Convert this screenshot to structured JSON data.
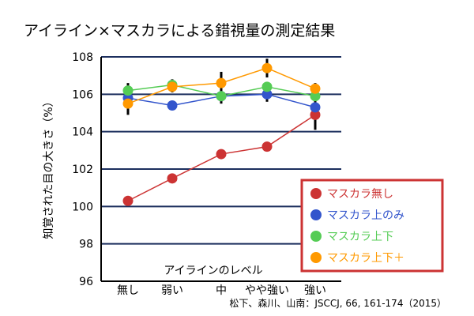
{
  "chart_data": {
    "type": "line",
    "title": "アイライン×マスカラによる錯視量の測定結果",
    "xlabel": "アイラインのレベル",
    "ylabel": "知覚された目の大きさ（%）",
    "categories": [
      "無し",
      "弱い",
      "中",
      "やや強い",
      "強い"
    ],
    "ylim": [
      96,
      108
    ],
    "yticks": [
      96,
      98,
      100,
      102,
      104,
      106,
      108
    ],
    "grid": true,
    "legend_position": "bottom-right",
    "series": [
      {
        "name": "マスカラ無し",
        "color": "#cc3333",
        "values": [
          100.3,
          101.5,
          102.8,
          103.2,
          104.9
        ],
        "err": [
          0,
          0,
          0,
          0,
          0.8
        ]
      },
      {
        "name": "マスカラ上のみ",
        "color": "#3355cc",
        "values": [
          105.8,
          105.4,
          105.9,
          106.0,
          105.3
        ],
        "err": [
          0.3,
          0,
          0.4,
          0.4,
          0.4
        ]
      },
      {
        "name": "マスカラ上下",
        "color": "#55cc55",
        "values": [
          106.2,
          106.5,
          105.9,
          106.4,
          105.9
        ],
        "err": [
          0.4,
          0.3,
          0.3,
          0,
          0
        ]
      },
      {
        "name": "マスカラ上下＋",
        "color": "#ff9900",
        "values": [
          105.5,
          106.4,
          106.6,
          107.4,
          106.3
        ],
        "err": [
          0.6,
          0.3,
          0.6,
          0.5,
          0.3
        ]
      }
    ],
    "source": "松下、森川、山南：JSCCJ, 66, 161-174（2015）"
  }
}
